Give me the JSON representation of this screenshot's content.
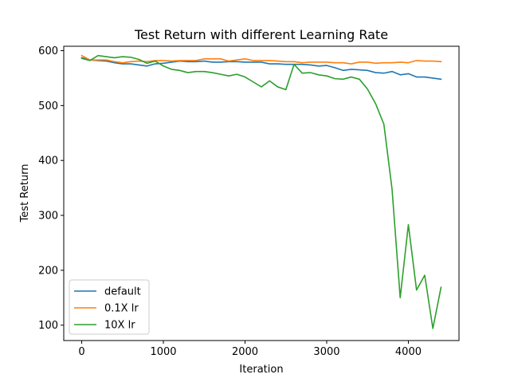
{
  "chart_data": {
    "type": "line",
    "title": "Test Return with different Learning Rate",
    "xlabel": "Iteration",
    "ylabel": "Test Return",
    "xlim": [
      -220,
      4620
    ],
    "ylim": [
      72,
      608
    ],
    "xticks": [
      0,
      1000,
      2000,
      3000,
      4000
    ],
    "yticks": [
      100,
      200,
      300,
      400,
      500,
      600
    ],
    "grid": false,
    "legend_position": "lower-left",
    "x": [
      0,
      100,
      200,
      300,
      400,
      500,
      600,
      700,
      800,
      900,
      1000,
      1100,
      1200,
      1300,
      1400,
      1500,
      1600,
      1700,
      1800,
      1900,
      2000,
      2100,
      2200,
      2300,
      2400,
      2500,
      2600,
      2700,
      2800,
      2900,
      3000,
      3100,
      3200,
      3300,
      3400,
      3500,
      3600,
      3700,
      3800,
      3900,
      4000,
      4100,
      4200,
      4300,
      4400
    ],
    "series": [
      {
        "name": "default",
        "color": "#1f77b4",
        "values": [
          587,
          583,
          582,
          581,
          578,
          576,
          576,
          574,
          572,
          576,
          577,
          579,
          581,
          580,
          580,
          581,
          579,
          579,
          580,
          580,
          579,
          579,
          579,
          576,
          576,
          575,
          575,
          575,
          574,
          572,
          573,
          569,
          564,
          566,
          565,
          564,
          560,
          559,
          562,
          556,
          558,
          552,
          552,
          550,
          548
        ]
      },
      {
        "name": "0.1X lr",
        "color": "#ff7f0e",
        "values": [
          591,
          583,
          583,
          583,
          580,
          578,
          580,
          581,
          580,
          582,
          582,
          581,
          582,
          582,
          582,
          585,
          585,
          585,
          581,
          583,
          585,
          582,
          582,
          582,
          581,
          580,
          580,
          578,
          579,
          579,
          579,
          578,
          578,
          576,
          579,
          579,
          577,
          578,
          578,
          579,
          578,
          582,
          581,
          581,
          580
        ]
      },
      {
        "name": "10X lr",
        "color": "#2ca02c",
        "values": [
          586,
          582,
          591,
          589,
          587,
          589,
          588,
          584,
          577,
          581,
          572,
          566,
          564,
          560,
          562,
          562,
          560,
          557,
          554,
          557,
          552,
          543,
          534,
          545,
          534,
          529,
          575,
          559,
          560,
          556,
          554,
          549,
          548,
          552,
          548,
          530,
          503,
          466,
          348,
          150,
          283,
          164,
          191,
          94,
          169
        ]
      }
    ]
  }
}
